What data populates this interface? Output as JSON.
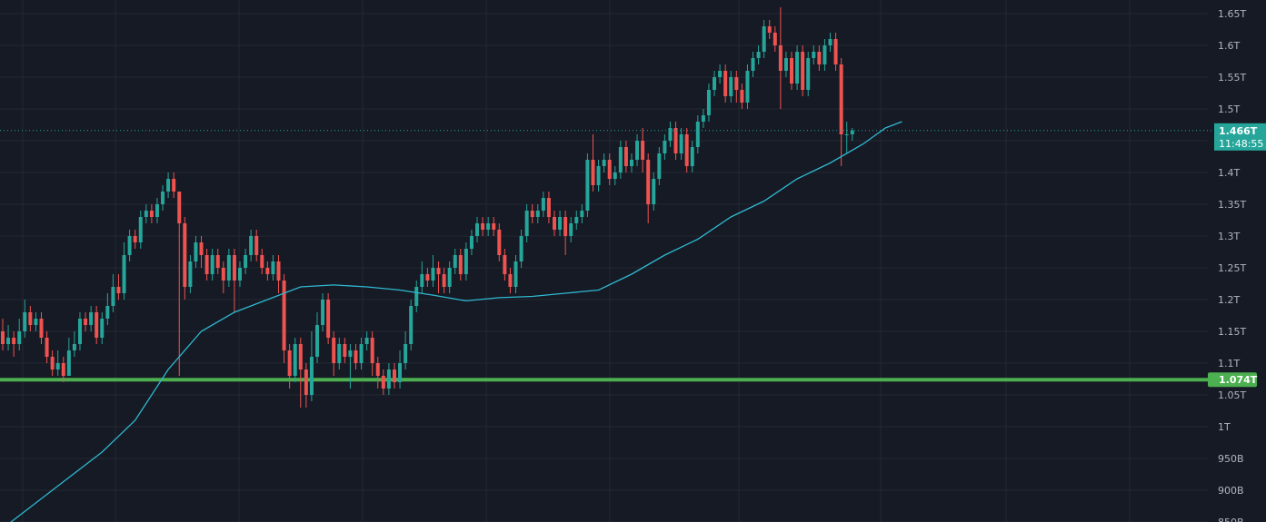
{
  "colors": {
    "background": "#161a25",
    "grid": "#232834",
    "up": "#26a69a",
    "down": "#ef5350",
    "ma_line": "#2fb8cf",
    "support_line": "#4caf50",
    "axis_text": "#b2b5be"
  },
  "price_axis": {
    "ticks": [
      "1.65T",
      "1.6T",
      "1.55T",
      "1.5T",
      "1.45T",
      "1.4T",
      "1.35T",
      "1.3T",
      "1.25T",
      "1.2T",
      "1.15T",
      "1.1T",
      "1.05T",
      "1T",
      "950B",
      "900B",
      "850B"
    ]
  },
  "current_price": {
    "label": "1.466T",
    "countdown": "11:48:55",
    "value": 1.466
  },
  "support_level": {
    "label": "1.074T",
    "value": 1.074
  },
  "chart_data": {
    "type": "candlestick",
    "title": "",
    "xlabel": "",
    "ylabel": "",
    "ylim": [
      0.85,
      1.66
    ],
    "unit": "T",
    "candles": [
      [
        1.15,
        1.13,
        1.17,
        1.12
      ],
      [
        1.13,
        1.14,
        1.16,
        1.12
      ],
      [
        1.14,
        1.13,
        1.15,
        1.11
      ],
      [
        1.13,
        1.15,
        1.17,
        1.12
      ],
      [
        1.15,
        1.18,
        1.2,
        1.14
      ],
      [
        1.18,
        1.16,
        1.19,
        1.15
      ],
      [
        1.16,
        1.17,
        1.18,
        1.15
      ],
      [
        1.17,
        1.14,
        1.18,
        1.13
      ],
      [
        1.14,
        1.11,
        1.15,
        1.1
      ],
      [
        1.11,
        1.09,
        1.12,
        1.08
      ],
      [
        1.09,
        1.1,
        1.12,
        1.08
      ],
      [
        1.1,
        1.08,
        1.11,
        1.07
      ],
      [
        1.08,
        1.12,
        1.14,
        1.08
      ],
      [
        1.12,
        1.13,
        1.15,
        1.11
      ],
      [
        1.13,
        1.17,
        1.18,
        1.12
      ],
      [
        1.17,
        1.16,
        1.18,
        1.15
      ],
      [
        1.16,
        1.18,
        1.19,
        1.15
      ],
      [
        1.18,
        1.14,
        1.19,
        1.13
      ],
      [
        1.14,
        1.17,
        1.18,
        1.13
      ],
      [
        1.17,
        1.19,
        1.21,
        1.16
      ],
      [
        1.19,
        1.22,
        1.24,
        1.18
      ],
      [
        1.22,
        1.21,
        1.24,
        1.2
      ],
      [
        1.21,
        1.27,
        1.29,
        1.2
      ],
      [
        1.27,
        1.3,
        1.31,
        1.26
      ],
      [
        1.3,
        1.29,
        1.31,
        1.28
      ],
      [
        1.29,
        1.33,
        1.34,
        1.28
      ],
      [
        1.33,
        1.34,
        1.35,
        1.32
      ],
      [
        1.34,
        1.33,
        1.35,
        1.32
      ],
      [
        1.33,
        1.35,
        1.36,
        1.32
      ],
      [
        1.35,
        1.37,
        1.38,
        1.34
      ],
      [
        1.37,
        1.39,
        1.4,
        1.36
      ],
      [
        1.39,
        1.37,
        1.4,
        1.36
      ],
      [
        1.37,
        1.32,
        1.37,
        1.08
      ],
      [
        1.32,
        1.22,
        1.33,
        1.2
      ],
      [
        1.22,
        1.26,
        1.27,
        1.21
      ],
      [
        1.26,
        1.29,
        1.3,
        1.25
      ],
      [
        1.29,
        1.27,
        1.3,
        1.25
      ],
      [
        1.27,
        1.24,
        1.28,
        1.23
      ],
      [
        1.24,
        1.27,
        1.28,
        1.23
      ],
      [
        1.27,
        1.25,
        1.28,
        1.24
      ],
      [
        1.25,
        1.23,
        1.26,
        1.21
      ],
      [
        1.23,
        1.27,
        1.28,
        1.22
      ],
      [
        1.27,
        1.23,
        1.28,
        1.18
      ],
      [
        1.23,
        1.25,
        1.26,
        1.22
      ],
      [
        1.25,
        1.27,
        1.28,
        1.24
      ],
      [
        1.27,
        1.3,
        1.31,
        1.26
      ],
      [
        1.3,
        1.27,
        1.31,
        1.26
      ],
      [
        1.27,
        1.25,
        1.28,
        1.24
      ],
      [
        1.25,
        1.24,
        1.26,
        1.23
      ],
      [
        1.24,
        1.26,
        1.27,
        1.23
      ],
      [
        1.26,
        1.23,
        1.27,
        1.21
      ],
      [
        1.23,
        1.12,
        1.24,
        1.1
      ],
      [
        1.12,
        1.08,
        1.13,
        1.06
      ],
      [
        1.08,
        1.13,
        1.14,
        1.07
      ],
      [
        1.13,
        1.09,
        1.14,
        1.03
      ],
      [
        1.09,
        1.05,
        1.1,
        1.03
      ],
      [
        1.05,
        1.11,
        1.15,
        1.04
      ],
      [
        1.11,
        1.16,
        1.18,
        1.1
      ],
      [
        1.16,
        1.2,
        1.21,
        1.15
      ],
      [
        1.2,
        1.14,
        1.21,
        1.13
      ],
      [
        1.14,
        1.1,
        1.15,
        1.08
      ],
      [
        1.1,
        1.13,
        1.14,
        1.09
      ],
      [
        1.13,
        1.11,
        1.14,
        1.1
      ],
      [
        1.11,
        1.12,
        1.13,
        1.06
      ],
      [
        1.12,
        1.1,
        1.13,
        1.09
      ],
      [
        1.1,
        1.13,
        1.14,
        1.09
      ],
      [
        1.13,
        1.14,
        1.15,
        1.12
      ],
      [
        1.14,
        1.1,
        1.15,
        1.08
      ],
      [
        1.1,
        1.08,
        1.11,
        1.06
      ],
      [
        1.08,
        1.06,
        1.09,
        1.05
      ],
      [
        1.06,
        1.09,
        1.1,
        1.05
      ],
      [
        1.09,
        1.07,
        1.1,
        1.06
      ],
      [
        1.07,
        1.1,
        1.12,
        1.06
      ],
      [
        1.1,
        1.13,
        1.15,
        1.09
      ],
      [
        1.13,
        1.19,
        1.2,
        1.12
      ],
      [
        1.19,
        1.22,
        1.23,
        1.18
      ],
      [
        1.22,
        1.24,
        1.26,
        1.21
      ],
      [
        1.24,
        1.23,
        1.25,
        1.22
      ],
      [
        1.23,
        1.25,
        1.27,
        1.22
      ],
      [
        1.25,
        1.24,
        1.26,
        1.21
      ],
      [
        1.24,
        1.22,
        1.25,
        1.21
      ],
      [
        1.22,
        1.25,
        1.26,
        1.21
      ],
      [
        1.25,
        1.27,
        1.28,
        1.24
      ],
      [
        1.27,
        1.24,
        1.28,
        1.23
      ],
      [
        1.24,
        1.28,
        1.29,
        1.23
      ],
      [
        1.28,
        1.3,
        1.31,
        1.27
      ],
      [
        1.3,
        1.32,
        1.33,
        1.29
      ],
      [
        1.32,
        1.31,
        1.33,
        1.3
      ],
      [
        1.31,
        1.32,
        1.33,
        1.3
      ],
      [
        1.32,
        1.31,
        1.33,
        1.3
      ],
      [
        1.31,
        1.27,
        1.32,
        1.26
      ],
      [
        1.27,
        1.24,
        1.28,
        1.23
      ],
      [
        1.24,
        1.22,
        1.25,
        1.21
      ],
      [
        1.22,
        1.26,
        1.27,
        1.21
      ],
      [
        1.26,
        1.3,
        1.31,
        1.25
      ],
      [
        1.3,
        1.34,
        1.35,
        1.29
      ],
      [
        1.34,
        1.33,
        1.35,
        1.32
      ],
      [
        1.33,
        1.34,
        1.35,
        1.32
      ],
      [
        1.34,
        1.36,
        1.37,
        1.33
      ],
      [
        1.36,
        1.33,
        1.37,
        1.32
      ],
      [
        1.33,
        1.31,
        1.34,
        1.3
      ],
      [
        1.31,
        1.33,
        1.34,
        1.3
      ],
      [
        1.33,
        1.3,
        1.34,
        1.27
      ],
      [
        1.3,
        1.32,
        1.33,
        1.29
      ],
      [
        1.32,
        1.33,
        1.34,
        1.31
      ],
      [
        1.33,
        1.34,
        1.35,
        1.32
      ],
      [
        1.34,
        1.42,
        1.43,
        1.33
      ],
      [
        1.42,
        1.38,
        1.46,
        1.37
      ],
      [
        1.38,
        1.41,
        1.42,
        1.37
      ],
      [
        1.41,
        1.42,
        1.43,
        1.4
      ],
      [
        1.42,
        1.39,
        1.43,
        1.38
      ],
      [
        1.39,
        1.4,
        1.41,
        1.38
      ],
      [
        1.4,
        1.44,
        1.45,
        1.39
      ],
      [
        1.44,
        1.41,
        1.45,
        1.4
      ],
      [
        1.41,
        1.42,
        1.43,
        1.4
      ],
      [
        1.42,
        1.45,
        1.46,
        1.41
      ],
      [
        1.45,
        1.42,
        1.47,
        1.4
      ],
      [
        1.42,
        1.35,
        1.43,
        1.32
      ],
      [
        1.35,
        1.39,
        1.4,
        1.34
      ],
      [
        1.39,
        1.43,
        1.44,
        1.38
      ],
      [
        1.43,
        1.45,
        1.46,
        1.42
      ],
      [
        1.45,
        1.47,
        1.48,
        1.44
      ],
      [
        1.47,
        1.43,
        1.48,
        1.42
      ],
      [
        1.43,
        1.46,
        1.47,
        1.42
      ],
      [
        1.46,
        1.41,
        1.47,
        1.4
      ],
      [
        1.41,
        1.44,
        1.45,
        1.4
      ],
      [
        1.44,
        1.48,
        1.49,
        1.43
      ],
      [
        1.48,
        1.49,
        1.5,
        1.47
      ],
      [
        1.49,
        1.53,
        1.54,
        1.48
      ],
      [
        1.53,
        1.55,
        1.56,
        1.52
      ],
      [
        1.55,
        1.56,
        1.57,
        1.54
      ],
      [
        1.56,
        1.52,
        1.57,
        1.51
      ],
      [
        1.52,
        1.55,
        1.56,
        1.51
      ],
      [
        1.55,
        1.53,
        1.56,
        1.51
      ],
      [
        1.53,
        1.51,
        1.54,
        1.5
      ],
      [
        1.51,
        1.56,
        1.57,
        1.5
      ],
      [
        1.56,
        1.58,
        1.59,
        1.55
      ],
      [
        1.58,
        1.59,
        1.6,
        1.57
      ],
      [
        1.59,
        1.63,
        1.64,
        1.58
      ],
      [
        1.63,
        1.62,
        1.64,
        1.61
      ],
      [
        1.62,
        1.6,
        1.63,
        1.59
      ],
      [
        1.6,
        1.56,
        1.66,
        1.5
      ],
      [
        1.56,
        1.58,
        1.59,
        1.55
      ],
      [
        1.58,
        1.54,
        1.59,
        1.53
      ],
      [
        1.54,
        1.59,
        1.6,
        1.53
      ],
      [
        1.59,
        1.53,
        1.6,
        1.52
      ],
      [
        1.53,
        1.58,
        1.59,
        1.52
      ],
      [
        1.58,
        1.59,
        1.6,
        1.57
      ],
      [
        1.59,
        1.57,
        1.6,
        1.56
      ],
      [
        1.57,
        1.6,
        1.61,
        1.56
      ],
      [
        1.6,
        1.61,
        1.62,
        1.59
      ],
      [
        1.61,
        1.57,
        1.62,
        1.56
      ],
      [
        1.57,
        1.46,
        1.58,
        1.41
      ],
      [
        1.46,
        1.46,
        1.48,
        1.43
      ],
      [
        1.46,
        1.466,
        1.47,
        1.45
      ]
    ],
    "moving_average": [
      [
        0,
        0.84
      ],
      [
        6,
        0.88
      ],
      [
        12,
        0.92
      ],
      [
        18,
        0.96
      ],
      [
        24,
        1.01
      ],
      [
        30,
        1.09
      ],
      [
        36,
        1.15
      ],
      [
        42,
        1.18
      ],
      [
        48,
        1.2
      ],
      [
        54,
        1.22
      ],
      [
        60,
        1.223
      ],
      [
        66,
        1.22
      ],
      [
        72,
        1.215
      ],
      [
        78,
        1.207
      ],
      [
        84,
        1.198
      ],
      [
        90,
        1.203
      ],
      [
        96,
        1.205
      ],
      [
        102,
        1.21
      ],
      [
        108,
        1.215
      ],
      [
        114,
        1.24
      ],
      [
        120,
        1.27
      ],
      [
        126,
        1.295
      ],
      [
        132,
        1.33
      ],
      [
        138,
        1.355
      ],
      [
        144,
        1.39
      ],
      [
        150,
        1.415
      ],
      [
        156,
        1.445
      ],
      [
        160,
        1.47
      ],
      [
        163,
        1.48
      ]
    ]
  }
}
